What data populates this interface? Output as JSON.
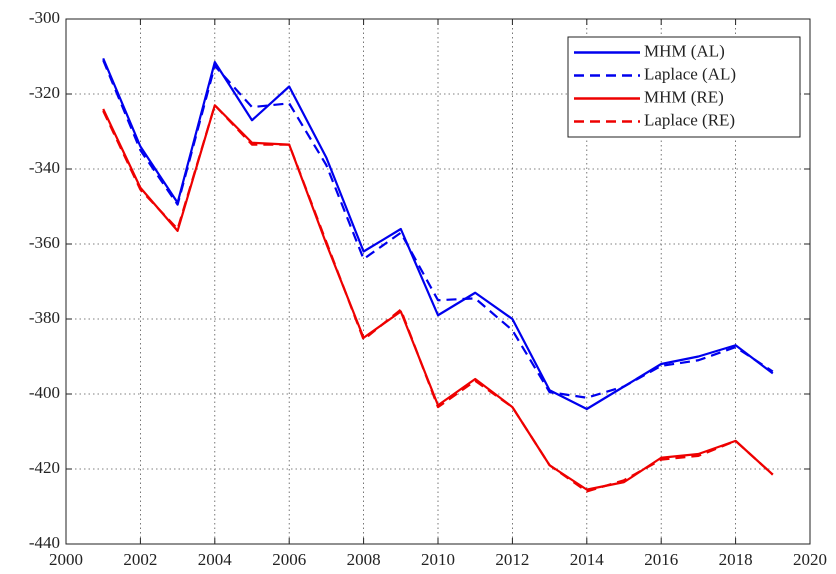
{
  "chart_data": {
    "type": "line",
    "x": [
      2001,
      2002,
      2003,
      2004,
      2005,
      2006,
      2007,
      2008,
      2009,
      2010,
      2011,
      2012,
      2013,
      2014,
      2015,
      2016,
      2017,
      2018,
      2019
    ],
    "series": [
      {
        "name": "MHM (AL)",
        "color": "#0000ee",
        "style": "solid",
        "values": [
          -310.5,
          -334,
          -349,
          -311.5,
          -327,
          -318,
          -337,
          -362,
          -356,
          -379,
          -373,
          -380,
          -399,
          -404,
          -398,
          -392,
          -390,
          -387,
          -394.5
        ]
      },
      {
        "name": "Laplace (AL)",
        "color": "#0000ee",
        "style": "dashed",
        "values": [
          -311,
          -335,
          -349.5,
          -312.5,
          -323.5,
          -322.5,
          -339,
          -364,
          -357,
          -375,
          -374.5,
          -383,
          -399.5,
          -401,
          -398,
          -392.5,
          -391,
          -387.5,
          -394
        ]
      },
      {
        "name": "MHM (RE)",
        "color": "#ee0000",
        "style": "solid",
        "values": [
          -324,
          -345,
          -356.5,
          -323,
          -333,
          -333.5,
          -360,
          -385,
          -378,
          -403,
          -396,
          -403.5,
          -419,
          -425.5,
          -423.5,
          -417,
          -416,
          -412.5,
          -421.5
        ]
      },
      {
        "name": "Laplace (RE)",
        "color": "#ee0000",
        "style": "dashed",
        "values": [
          -324.5,
          -345.5,
          -356,
          -323,
          -333.5,
          -333.5,
          -359.5,
          -385.5,
          -377.5,
          -403.5,
          -396.5,
          -403.5,
          -419,
          -426,
          -423,
          -417.5,
          -416.5,
          -412.5,
          -421.5
        ]
      }
    ],
    "xlim": [
      2000,
      2020
    ],
    "xticks": [
      2000,
      2002,
      2004,
      2006,
      2008,
      2010,
      2012,
      2014,
      2016,
      2018,
      2020
    ],
    "ylim": [
      -440,
      -300
    ],
    "yticks": [
      -440,
      -420,
      -400,
      -380,
      -360,
      -340,
      -320,
      -300
    ],
    "grid": true,
    "legend": "top-right"
  }
}
